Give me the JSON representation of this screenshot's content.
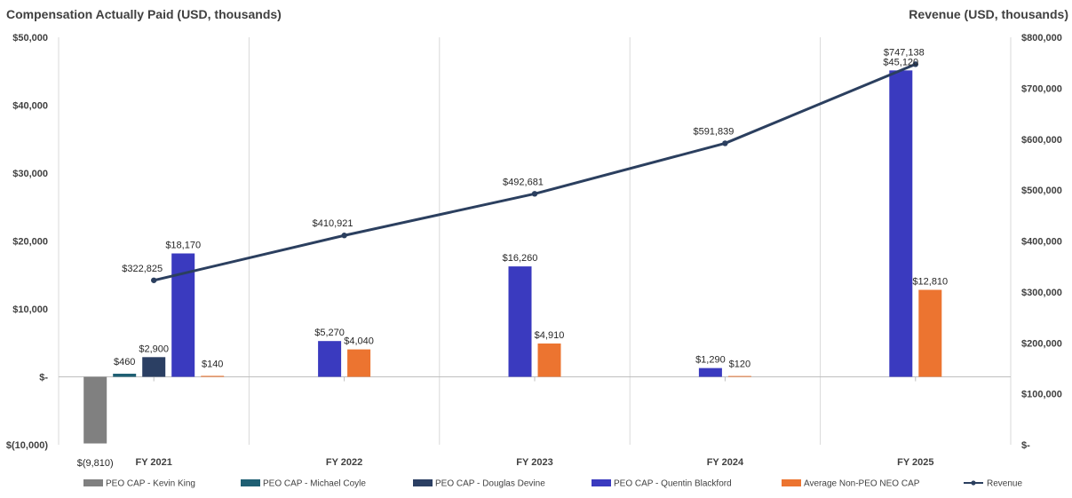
{
  "chart_data": {
    "type": "bar",
    "categories": [
      "FY 2021",
      "FY 2022",
      "FY 2023",
      "FY 2024",
      "FY 2025"
    ],
    "ylabel": "Compensation Actually Paid (USD, thousands)",
    "y2label": "Revenue (USD, thousands)",
    "ylim": [
      -10000,
      50000
    ],
    "y2lim": [
      0,
      800000
    ],
    "y_ticks": [
      -10000,
      0,
      10000,
      20000,
      30000,
      40000,
      50000
    ],
    "y_tick_labels": [
      "$(10,000)",
      "$-",
      "$10,000",
      "$20,000",
      "$30,000",
      "$40,000",
      "$50,000"
    ],
    "y2_ticks": [
      0,
      100000,
      200000,
      300000,
      400000,
      500000,
      600000,
      700000,
      800000
    ],
    "y2_tick_labels": [
      "$-",
      "$100,000",
      "$200,000",
      "$300,000",
      "$400,000",
      "$500,000",
      "$600,000",
      "$700,000",
      "$800,000"
    ],
    "legend_position": "bottom",
    "grid": "vertical category separators",
    "series": [
      {
        "name": "PEO CAP - Kevin King",
        "type": "bar",
        "color": "#808080",
        "values": [
          -9810,
          null,
          null,
          null,
          null
        ],
        "labels": [
          "$(9,810)",
          "",
          "",
          "",
          ""
        ]
      },
      {
        "name": "PEO CAP - Michael Coyle",
        "type": "bar",
        "color": "#1f5f73",
        "values": [
          460,
          null,
          null,
          null,
          null
        ],
        "labels": [
          "$460",
          "",
          "",
          "",
          ""
        ]
      },
      {
        "name": "PEO CAP - Douglas Devine",
        "type": "bar",
        "color": "#2b3f63",
        "values": [
          2900,
          null,
          null,
          null,
          null
        ],
        "labels": [
          "$2,900",
          "",
          "",
          "",
          ""
        ]
      },
      {
        "name": "PEO CAP - Quentin Blackford",
        "type": "bar",
        "color": "#3a3abf",
        "values": [
          18170,
          5270,
          16260,
          1290,
          45120
        ],
        "labels": [
          "$18,170",
          "$5,270",
          "$16,260",
          "$1,290",
          "$45,120"
        ]
      },
      {
        "name": "Average Non-PEO NEO CAP",
        "type": "bar",
        "color": "#ec7430",
        "values": [
          140,
          4040,
          4910,
          120,
          12810
        ],
        "labels": [
          "$140",
          "$4,040",
          "$4,910",
          "$120",
          "$12,810"
        ]
      },
      {
        "name": "Revenue",
        "type": "line",
        "axis": "y2",
        "color": "#2b3f5f",
        "values": [
          322825,
          410921,
          492681,
          591839,
          747138
        ],
        "labels": [
          "$322,825",
          "$410,921",
          "$492,681",
          "$591,839",
          "$747,138"
        ]
      }
    ]
  }
}
